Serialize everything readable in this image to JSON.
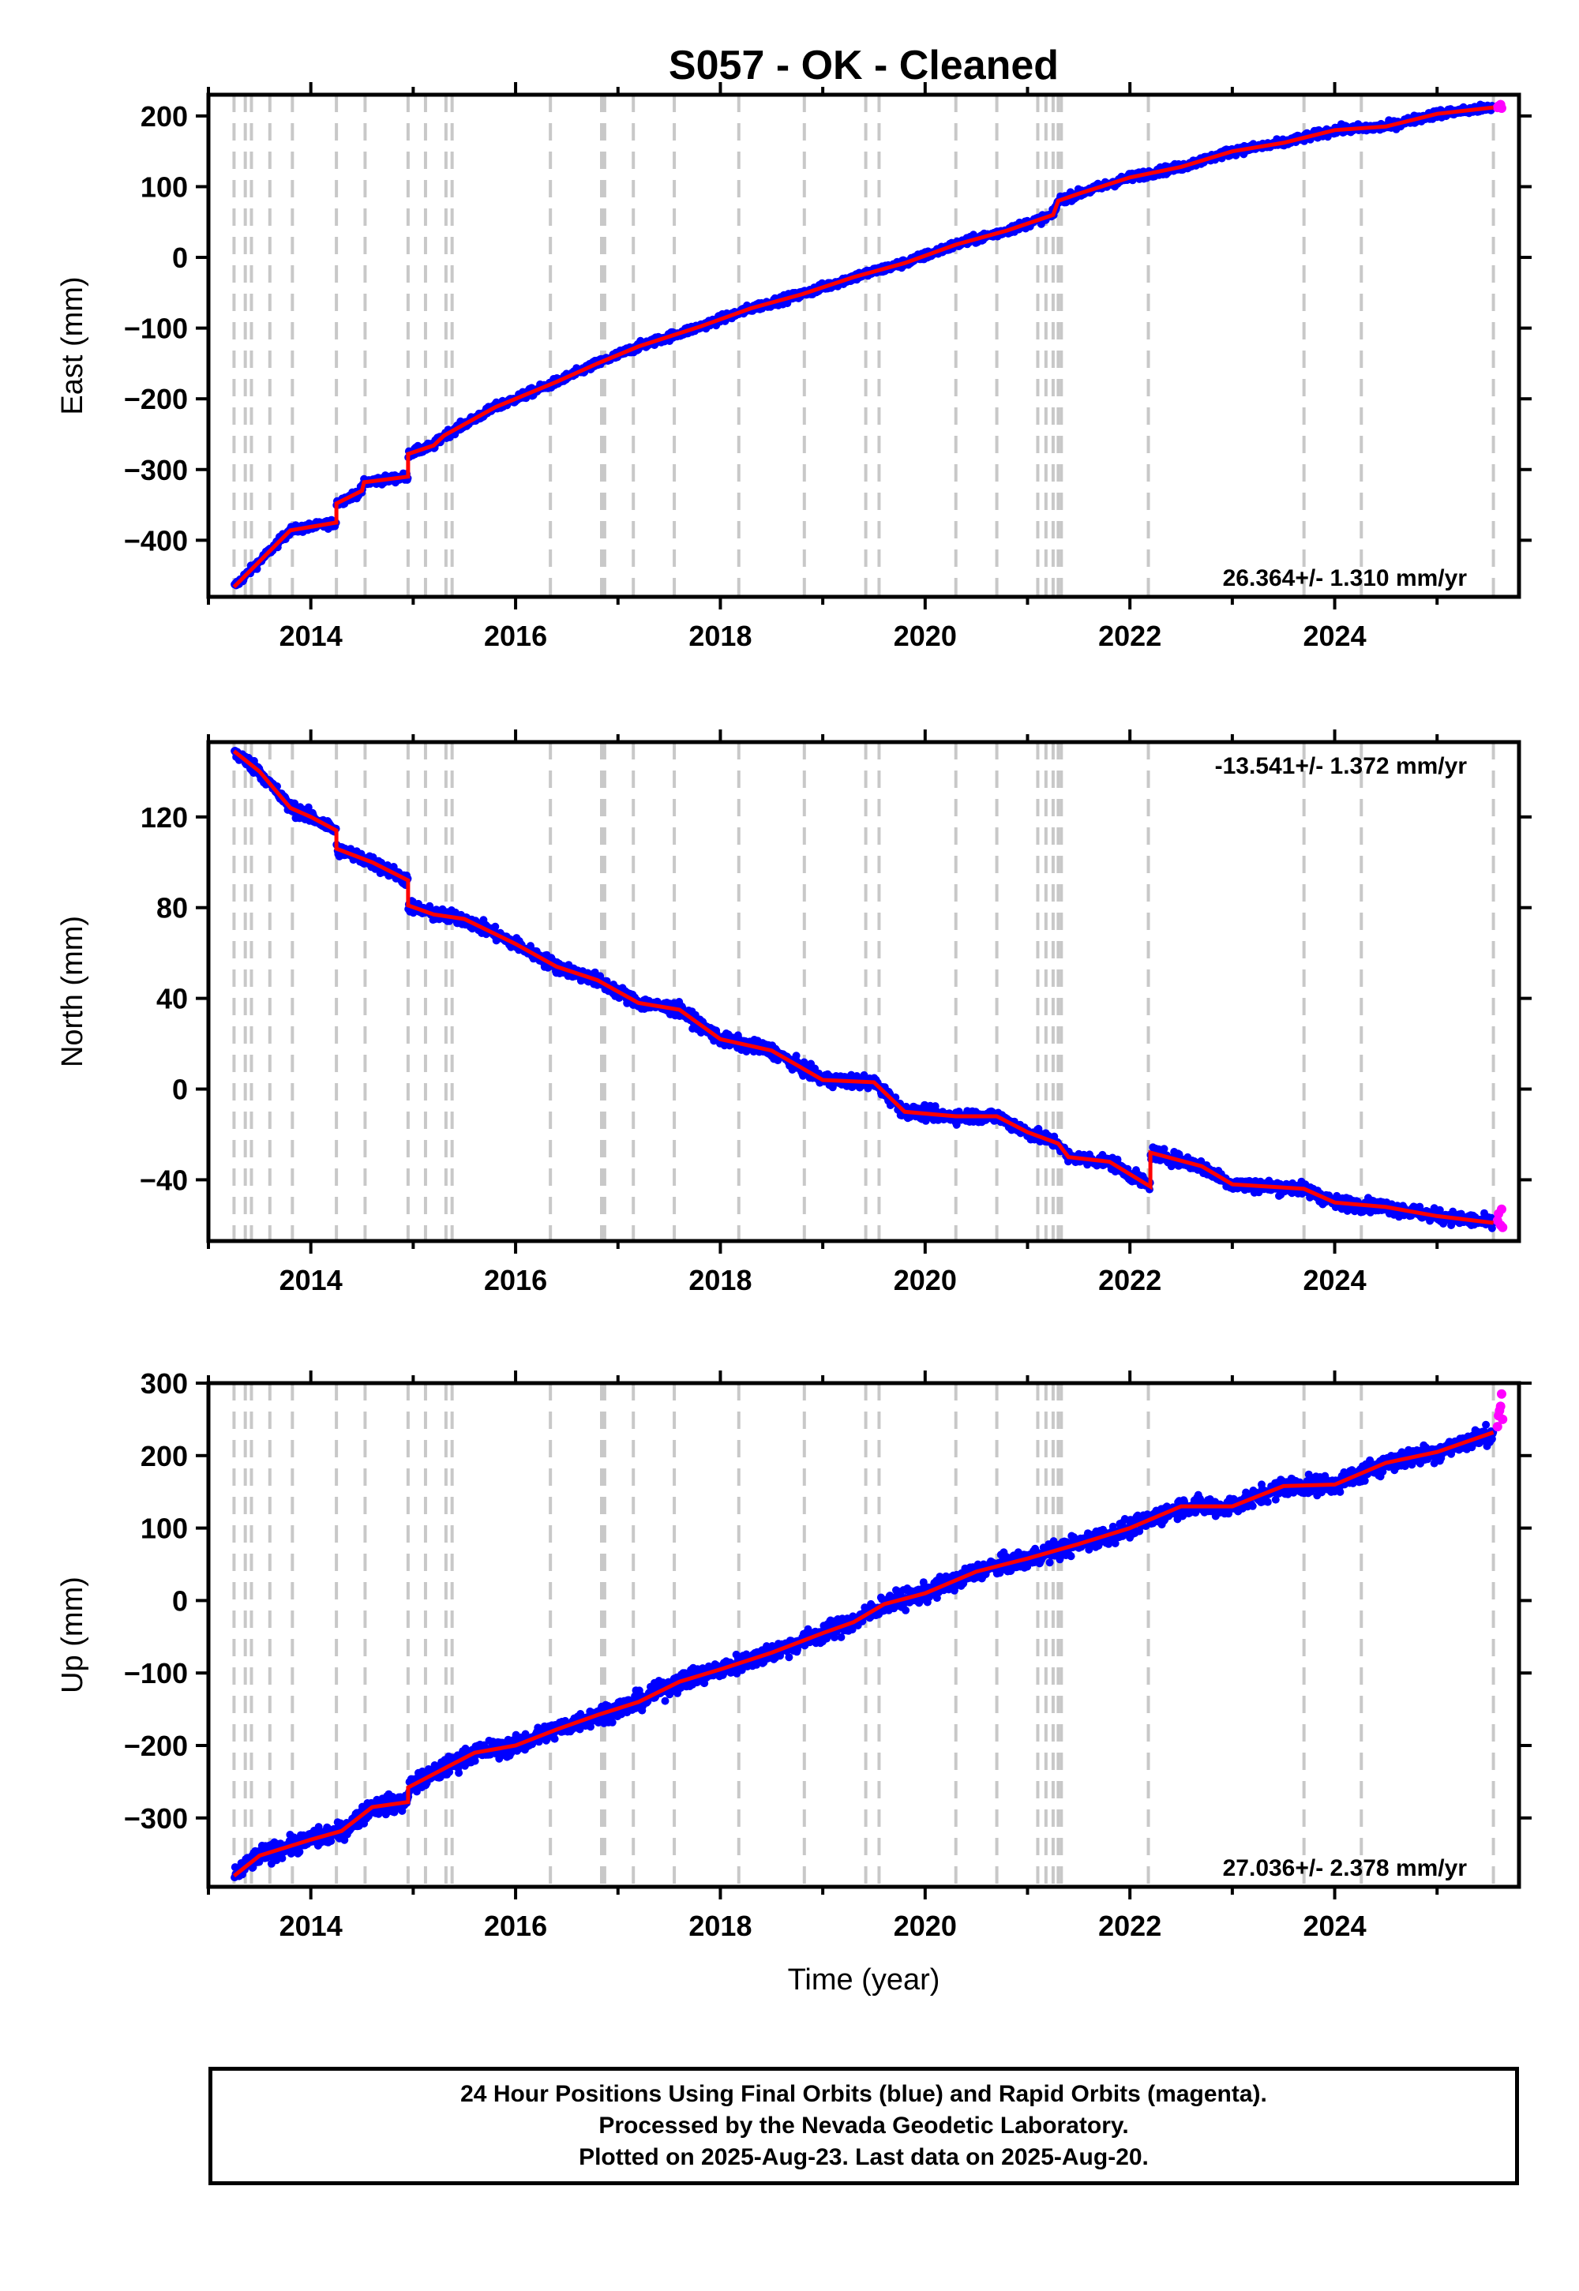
{
  "title": "S057  - OK - Cleaned",
  "colors": {
    "final_orbits": "#0000ff",
    "rapid_orbits": "#ff00ff",
    "model": "#ff0000",
    "events": "#c8c8c8"
  },
  "chart_data": [
    {
      "type": "scatter",
      "component": "east",
      "ylabel": "East (mm)",
      "xlabel": "",
      "xlim": [
        2013.0,
        2025.8
      ],
      "ylim": [
        -480,
        230
      ],
      "yticks": [
        -400,
        -300,
        -200,
        -100,
        0,
        100,
        200
      ],
      "xticks": [
        2014,
        2016,
        2018,
        2020,
        2022,
        2024
      ],
      "rate_label": "26.364+/- 1.310 mm/yr",
      "rate_position": "bottom-right",
      "model_points": [
        [
          2013.25,
          -466
        ],
        [
          2013.8,
          -386
        ],
        [
          2014.25,
          -375
        ],
        [
          2014.25,
          -348
        ],
        [
          2014.5,
          -330
        ],
        [
          2014.52,
          -318
        ],
        [
          2014.95,
          -310
        ],
        [
          2014.95,
          -278
        ],
        [
          2015.2,
          -266
        ],
        [
          2015.3,
          -252
        ],
        [
          2015.8,
          -212
        ],
        [
          2016.4,
          -176
        ],
        [
          2016.8,
          -150
        ],
        [
          2017.2,
          -126
        ],
        [
          2017.8,
          -98
        ],
        [
          2018.3,
          -72
        ],
        [
          2018.8,
          -52
        ],
        [
          2019.3,
          -28
        ],
        [
          2019.8,
          -8
        ],
        [
          2020.3,
          18
        ],
        [
          2020.8,
          38
        ],
        [
          2021.25,
          60
        ],
        [
          2021.3,
          80
        ],
        [
          2021.5,
          90
        ],
        [
          2022.0,
          113
        ],
        [
          2022.5,
          128
        ],
        [
          2023.0,
          150
        ],
        [
          2023.5,
          162
        ],
        [
          2024.0,
          180
        ],
        [
          2024.5,
          185
        ],
        [
          2025.0,
          203
        ],
        [
          2025.55,
          212
        ]
      ],
      "noise": 4,
      "rapid_points": [
        [
          2025.59,
          212
        ],
        [
          2025.6,
          214
        ],
        [
          2025.62,
          216
        ],
        [
          2025.63,
          211
        ]
      ]
    },
    {
      "type": "scatter",
      "component": "north",
      "ylabel": "North (mm)",
      "xlabel": "",
      "xlim": [
        2013.0,
        2025.8
      ],
      "ylim": [
        -67,
        153
      ],
      "yticks": [
        -40,
        0,
        40,
        80,
        120
      ],
      "xticks": [
        2014,
        2016,
        2018,
        2020,
        2022,
        2024
      ],
      "rate_label": "-13.541+/- 1.372 mm/yr",
      "rate_position": "top-right",
      "model_points": [
        [
          2013.25,
          149
        ],
        [
          2013.5,
          140
        ],
        [
          2013.8,
          124
        ],
        [
          2014.0,
          120
        ],
        [
          2014.25,
          114
        ],
        [
          2014.25,
          106
        ],
        [
          2014.6,
          100
        ],
        [
          2014.95,
          92
        ],
        [
          2014.95,
          81
        ],
        [
          2015.2,
          77
        ],
        [
          2015.5,
          75
        ],
        [
          2016.0,
          64
        ],
        [
          2016.4,
          54
        ],
        [
          2016.8,
          48
        ],
        [
          2017.2,
          38
        ],
        [
          2017.6,
          35
        ],
        [
          2018.0,
          22
        ],
        [
          2018.5,
          17
        ],
        [
          2019.0,
          4
        ],
        [
          2019.5,
          3
        ],
        [
          2019.8,
          -10
        ],
        [
          2020.3,
          -12
        ],
        [
          2020.7,
          -12
        ],
        [
          2021.0,
          -19
        ],
        [
          2021.3,
          -24
        ],
        [
          2021.4,
          -30
        ],
        [
          2021.8,
          -32
        ],
        [
          2022.2,
          -43
        ],
        [
          2022.2,
          -28
        ],
        [
          2022.7,
          -34
        ],
        [
          2023.0,
          -42
        ],
        [
          2023.7,
          -44
        ],
        [
          2024.0,
          -50
        ],
        [
          2024.5,
          -52
        ],
        [
          2025.0,
          -56
        ],
        [
          2025.55,
          -59
        ]
      ],
      "noise": 2,
      "rapid_points": [
        [
          2025.59,
          -58
        ],
        [
          2025.6,
          -55
        ],
        [
          2025.62,
          -60
        ],
        [
          2025.63,
          -53
        ],
        [
          2025.64,
          -61
        ]
      ]
    },
    {
      "type": "scatter",
      "component": "up",
      "ylabel": "Up (mm)",
      "xlabel": "Time (year)",
      "xlim": [
        2013.0,
        2025.8
      ],
      "ylim": [
        -395,
        300
      ],
      "yticks": [
        -300,
        -200,
        -100,
        0,
        100,
        200,
        300
      ],
      "xticks": [
        2014,
        2016,
        2018,
        2020,
        2022,
        2024
      ],
      "rate_label": "27.036+/- 2.378 mm/yr",
      "rate_position": "bottom-right",
      "model_points": [
        [
          2013.25,
          -380
        ],
        [
          2013.5,
          -352
        ],
        [
          2014.0,
          -330
        ],
        [
          2014.3,
          -318
        ],
        [
          2014.6,
          -285
        ],
        [
          2014.95,
          -278
        ],
        [
          2014.95,
          -258
        ],
        [
          2015.3,
          -232
        ],
        [
          2015.6,
          -210
        ],
        [
          2016.0,
          -200
        ],
        [
          2016.4,
          -178
        ],
        [
          2016.8,
          -158
        ],
        [
          2017.2,
          -140
        ],
        [
          2017.6,
          -112
        ],
        [
          2018.0,
          -95
        ],
        [
          2018.5,
          -72
        ],
        [
          2019.0,
          -45
        ],
        [
          2019.3,
          -30
        ],
        [
          2019.6,
          -5
        ],
        [
          2020.0,
          10
        ],
        [
          2020.5,
          40
        ],
        [
          2021.0,
          58
        ],
        [
          2021.5,
          78
        ],
        [
          2022.0,
          100
        ],
        [
          2022.5,
          130
        ],
        [
          2023.0,
          130
        ],
        [
          2023.5,
          158
        ],
        [
          2024.0,
          160
        ],
        [
          2024.5,
          190
        ],
        [
          2025.0,
          205
        ],
        [
          2025.55,
          232
        ]
      ],
      "noise": 9,
      "rapid_points": [
        [
          2025.59,
          240
        ],
        [
          2025.6,
          255
        ],
        [
          2025.61,
          262
        ],
        [
          2025.62,
          268
        ],
        [
          2025.63,
          285
        ],
        [
          2025.64,
          250
        ]
      ]
    }
  ],
  "event_years": [
    2013.25,
    2013.36,
    2013.42,
    2013.6,
    2013.82,
    2014.25,
    2014.53,
    2014.95,
    2015.12,
    2015.32,
    2015.38,
    2016.34,
    2016.84,
    2016.87,
    2017.15,
    2017.55,
    2018.18,
    2018.82,
    2019.42,
    2019.55,
    2020.3,
    2020.7,
    2021.1,
    2021.18,
    2021.25,
    2021.3,
    2021.33,
    2022.18,
    2023.7,
    2024.26,
    2025.55
  ],
  "footer": {
    "line1": "24 Hour Positions Using Final Orbits (blue) and Rapid Orbits (magenta).",
    "line2": "Processed by the Nevada Geodetic Laboratory.",
    "line3": "Plotted on 2025-Aug-23. Last data on 2025-Aug-20."
  }
}
